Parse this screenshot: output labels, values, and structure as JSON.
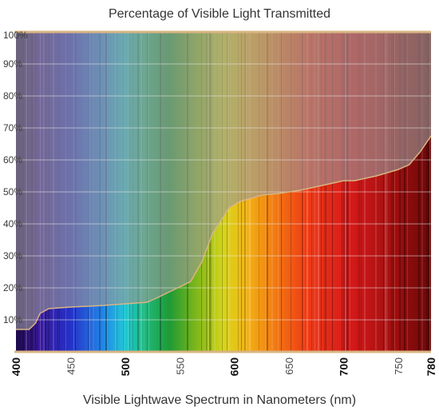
{
  "chart_data": {
    "type": "area",
    "title": "Percentage of Visible Light Transmitted",
    "xlabel": "Visible Lightwave Spectrum in Nanometers (nm)",
    "ylabel": "",
    "xlim": [
      400,
      780
    ],
    "ylim": [
      0,
      100
    ],
    "grid": true,
    "x_ticks": [
      {
        "value": 400,
        "label": "400",
        "major": true
      },
      {
        "value": 450,
        "label": "450",
        "major": false
      },
      {
        "value": 500,
        "label": "500",
        "major": true
      },
      {
        "value": 550,
        "label": "550",
        "major": false
      },
      {
        "value": 600,
        "label": "600",
        "major": true
      },
      {
        "value": 650,
        "label": "650",
        "major": false
      },
      {
        "value": 700,
        "label": "700",
        "major": true
      },
      {
        "value": 750,
        "label": "750",
        "major": false
      },
      {
        "value": 780,
        "label": "780",
        "major": true
      }
    ],
    "y_ticks": [
      {
        "value": 10,
        "label": "10%"
      },
      {
        "value": 20,
        "label": "20%"
      },
      {
        "value": 30,
        "label": "30%"
      },
      {
        "value": 40,
        "label": "40%"
      },
      {
        "value": 50,
        "label": "50%"
      },
      {
        "value": 60,
        "label": "60%"
      },
      {
        "value": 70,
        "label": "70%"
      },
      {
        "value": 80,
        "label": "80%"
      },
      {
        "value": 90,
        "label": "90%"
      },
      {
        "value": 100,
        "label": "100%"
      }
    ],
    "series": [
      {
        "x": [
          400,
          412,
          418,
          422,
          430,
          450,
          480,
          500,
          520,
          530,
          545,
          560,
          570,
          580,
          595,
          605,
          615,
          625,
          640,
          660,
          680,
          700,
          710,
          730,
          750,
          760,
          770,
          780
        ],
        "values": [
          7,
          7,
          9,
          12,
          13.5,
          14,
          14.5,
          15,
          15.5,
          17,
          19.5,
          22,
          28,
          37,
          45,
          47,
          48,
          49,
          49.5,
          50.5,
          52,
          53.5,
          53.5,
          55,
          57,
          58.5,
          62.5,
          67.5
        ]
      }
    ],
    "colors": {
      "curve": "#d9b483",
      "frame": "#d9b483",
      "grid": "#e9e9e9",
      "overlay": "#9a9a9a"
    }
  }
}
